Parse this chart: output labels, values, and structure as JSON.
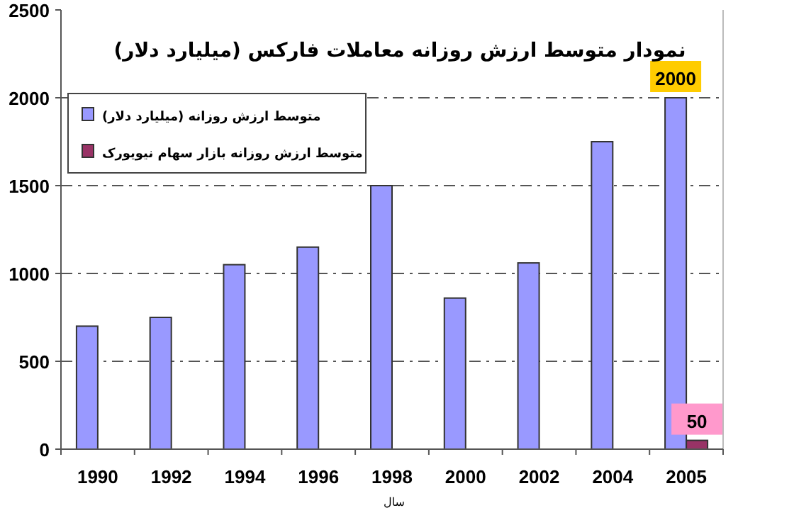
{
  "chart_data": {
    "type": "bar",
    "title": "نمودار متوسط ارزش روزانه معاملات فارکس (میلیارد دلار)",
    "xlabel": "سال",
    "categories": [
      "1990",
      "1992",
      "1994",
      "1996",
      "1998",
      "2000",
      "2002",
      "2004",
      "2005"
    ],
    "series": [
      {
        "name": "متوسط ارزش روزانه (میلیارد دلار)",
        "color": "#9999ff",
        "values": [
          700,
          750,
          1050,
          1150,
          1500,
          860,
          1060,
          1750,
          2000
        ],
        "value_labels": [
          null,
          null,
          null,
          null,
          null,
          null,
          null,
          null,
          "2000"
        ]
      },
      {
        "name": "متوسط ارزش روزانه بازار سهام نیویورک",
        "color": "#993366",
        "values": [
          null,
          null,
          null,
          null,
          null,
          null,
          null,
          null,
          50
        ],
        "value_labels": [
          null,
          null,
          null,
          null,
          null,
          null,
          null,
          null,
          "50"
        ]
      }
    ],
    "ylim": [
      0,
      2500
    ],
    "yticks": [
      0,
      500,
      1000,
      1500,
      2000,
      2500
    ],
    "grid": "y",
    "legend": "top left"
  }
}
